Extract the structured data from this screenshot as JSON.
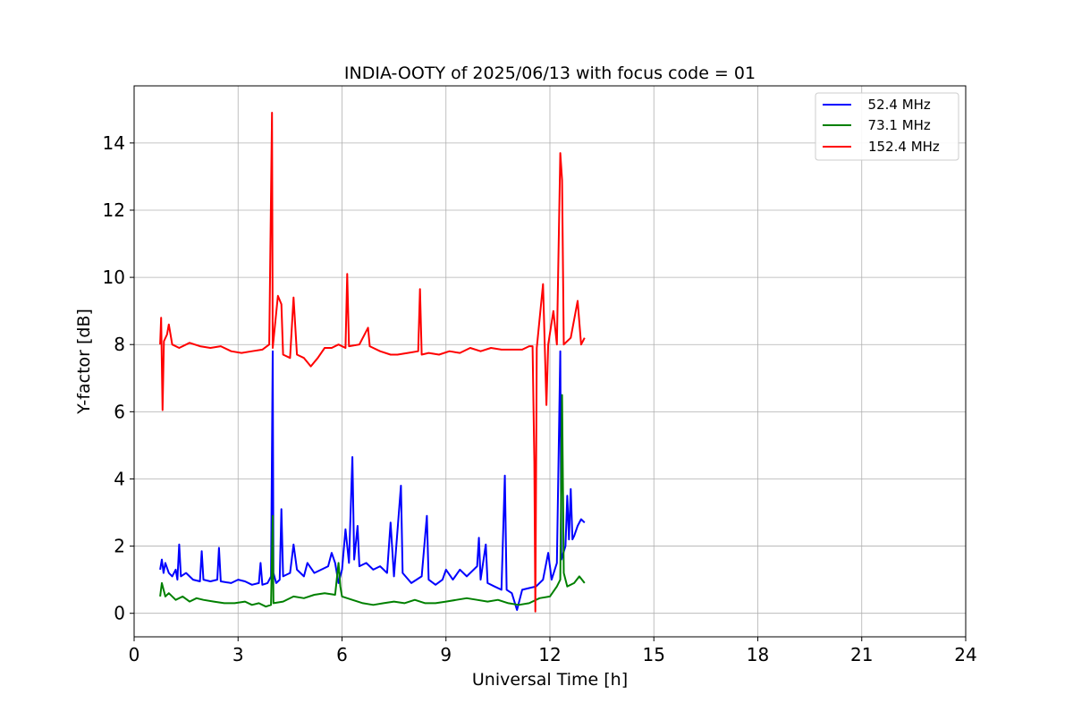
{
  "chart_data": {
    "type": "line",
    "title": "INDIA-OOTY of 2025/06/13 with focus code = 01",
    "xlabel": "Universal Time [h]",
    "ylabel": "Y-factor [dB]",
    "xlim": [
      0,
      24
    ],
    "ylim": [
      -0.7,
      15.7
    ],
    "xticks": [
      0,
      3,
      6,
      9,
      12,
      15,
      18,
      21,
      24
    ],
    "yticks": [
      0,
      2,
      4,
      6,
      8,
      10,
      12,
      14
    ],
    "grid": true,
    "legend_position": "top-right",
    "series": [
      {
        "name": "  52.4 MHz",
        "color": "#0000ff",
        "points": [
          [
            0.75,
            1.3
          ],
          [
            0.8,
            1.6
          ],
          [
            0.85,
            1.2
          ],
          [
            0.9,
            1.5
          ],
          [
            1.0,
            1.2
          ],
          [
            1.1,
            1.1
          ],
          [
            1.2,
            1.3
          ],
          [
            1.25,
            1.0
          ],
          [
            1.3,
            2.05
          ],
          [
            1.35,
            1.1
          ],
          [
            1.5,
            1.2
          ],
          [
            1.7,
            1.0
          ],
          [
            1.9,
            0.95
          ],
          [
            1.95,
            1.85
          ],
          [
            2.0,
            1.0
          ],
          [
            2.2,
            0.95
          ],
          [
            2.4,
            1.0
          ],
          [
            2.45,
            1.95
          ],
          [
            2.5,
            0.95
          ],
          [
            2.8,
            0.9
          ],
          [
            3.0,
            1.0
          ],
          [
            3.2,
            0.95
          ],
          [
            3.4,
            0.85
          ],
          [
            3.6,
            0.9
          ],
          [
            3.65,
            1.5
          ],
          [
            3.7,
            0.85
          ],
          [
            3.85,
            0.9
          ],
          [
            3.95,
            1.1
          ],
          [
            4.0,
            7.8
          ],
          [
            4.02,
            1.2
          ],
          [
            4.1,
            0.9
          ],
          [
            4.2,
            1.0
          ],
          [
            4.25,
            3.1
          ],
          [
            4.3,
            1.1
          ],
          [
            4.5,
            1.2
          ],
          [
            4.6,
            2.05
          ],
          [
            4.7,
            1.3
          ],
          [
            4.9,
            1.1
          ],
          [
            5.0,
            1.5
          ],
          [
            5.2,
            1.2
          ],
          [
            5.4,
            1.3
          ],
          [
            5.6,
            1.4
          ],
          [
            5.7,
            1.8
          ],
          [
            5.8,
            1.5
          ],
          [
            5.9,
            0.9
          ],
          [
            6.0,
            1.3
          ],
          [
            6.1,
            2.5
          ],
          [
            6.2,
            1.5
          ],
          [
            6.3,
            4.65
          ],
          [
            6.35,
            1.6
          ],
          [
            6.45,
            2.6
          ],
          [
            6.5,
            1.4
          ],
          [
            6.7,
            1.5
          ],
          [
            6.9,
            1.3
          ],
          [
            7.1,
            1.4
          ],
          [
            7.3,
            1.2
          ],
          [
            7.4,
            2.7
          ],
          [
            7.5,
            1.1
          ],
          [
            7.7,
            3.8
          ],
          [
            7.75,
            1.2
          ],
          [
            8.0,
            0.9
          ],
          [
            8.3,
            1.1
          ],
          [
            8.45,
            2.9
          ],
          [
            8.5,
            1.0
          ],
          [
            8.7,
            0.85
          ],
          [
            8.9,
            1.0
          ],
          [
            9.0,
            1.3
          ],
          [
            9.2,
            1.0
          ],
          [
            9.4,
            1.3
          ],
          [
            9.6,
            1.1
          ],
          [
            9.9,
            1.4
          ],
          [
            9.95,
            2.25
          ],
          [
            10.0,
            1.0
          ],
          [
            10.15,
            2.05
          ],
          [
            10.2,
            0.9
          ],
          [
            10.4,
            0.8
          ],
          [
            10.6,
            0.7
          ],
          [
            10.7,
            4.1
          ],
          [
            10.75,
            0.7
          ],
          [
            10.9,
            0.6
          ],
          [
            11.05,
            0.1
          ],
          [
            11.2,
            0.7
          ],
          [
            11.4,
            0.75
          ],
          [
            11.6,
            0.8
          ],
          [
            11.8,
            1.0
          ],
          [
            11.95,
            1.8
          ],
          [
            12.05,
            1.0
          ],
          [
            12.2,
            1.5
          ],
          [
            12.3,
            7.8
          ],
          [
            12.33,
            1.6
          ],
          [
            12.45,
            2.0
          ],
          [
            12.5,
            3.5
          ],
          [
            12.55,
            2.2
          ],
          [
            12.6,
            3.7
          ],
          [
            12.65,
            2.2
          ],
          [
            12.7,
            2.3
          ],
          [
            12.8,
            2.6
          ],
          [
            12.9,
            2.8
          ],
          [
            13.0,
            2.7
          ]
        ]
      },
      {
        "name": "  73.1 MHz",
        "color": "#008000",
        "points": [
          [
            0.75,
            0.5
          ],
          [
            0.8,
            0.9
          ],
          [
            0.9,
            0.5
          ],
          [
            1.0,
            0.6
          ],
          [
            1.2,
            0.4
          ],
          [
            1.4,
            0.5
          ],
          [
            1.6,
            0.35
          ],
          [
            1.8,
            0.45
          ],
          [
            2.0,
            0.4
          ],
          [
            2.3,
            0.35
          ],
          [
            2.6,
            0.3
          ],
          [
            2.9,
            0.3
          ],
          [
            3.2,
            0.35
          ],
          [
            3.4,
            0.25
          ],
          [
            3.6,
            0.3
          ],
          [
            3.8,
            0.2
          ],
          [
            3.95,
            0.25
          ],
          [
            4.0,
            2.9
          ],
          [
            4.02,
            0.3
          ],
          [
            4.3,
            0.35
          ],
          [
            4.6,
            0.5
          ],
          [
            4.9,
            0.45
          ],
          [
            5.2,
            0.55
          ],
          [
            5.5,
            0.6
          ],
          [
            5.8,
            0.55
          ],
          [
            5.9,
            1.5
          ],
          [
            5.95,
            0.8
          ],
          [
            6.0,
            0.5
          ],
          [
            6.3,
            0.4
          ],
          [
            6.6,
            0.3
          ],
          [
            6.9,
            0.25
          ],
          [
            7.2,
            0.3
          ],
          [
            7.5,
            0.35
          ],
          [
            7.8,
            0.3
          ],
          [
            8.1,
            0.4
          ],
          [
            8.4,
            0.3
          ],
          [
            8.7,
            0.3
          ],
          [
            9.0,
            0.35
          ],
          [
            9.3,
            0.4
          ],
          [
            9.6,
            0.45
          ],
          [
            9.9,
            0.4
          ],
          [
            10.2,
            0.35
          ],
          [
            10.5,
            0.4
          ],
          [
            10.8,
            0.3
          ],
          [
            11.1,
            0.25
          ],
          [
            11.4,
            0.3
          ],
          [
            11.7,
            0.45
          ],
          [
            12.0,
            0.5
          ],
          [
            12.2,
            0.8
          ],
          [
            12.3,
            1.0
          ],
          [
            12.35,
            6.5
          ],
          [
            12.4,
            1.2
          ],
          [
            12.5,
            0.8
          ],
          [
            12.7,
            0.9
          ],
          [
            12.85,
            1.1
          ],
          [
            13.0,
            0.9
          ]
        ]
      },
      {
        "name": "152.4 MHz",
        "color": "#ff0000",
        "points": [
          [
            0.75,
            8.0
          ],
          [
            0.78,
            8.8
          ],
          [
            0.82,
            6.05
          ],
          [
            0.86,
            8.1
          ],
          [
            0.95,
            8.3
          ],
          [
            1.0,
            8.6
          ],
          [
            1.1,
            8.0
          ],
          [
            1.3,
            7.9
          ],
          [
            1.6,
            8.05
          ],
          [
            1.9,
            7.95
          ],
          [
            2.2,
            7.9
          ],
          [
            2.5,
            7.95
          ],
          [
            2.8,
            7.8
          ],
          [
            3.1,
            7.75
          ],
          [
            3.4,
            7.8
          ],
          [
            3.7,
            7.85
          ],
          [
            3.9,
            8.0
          ],
          [
            3.98,
            14.9
          ],
          [
            4.0,
            7.9
          ],
          [
            4.15,
            9.45
          ],
          [
            4.25,
            9.2
          ],
          [
            4.3,
            7.7
          ],
          [
            4.5,
            7.6
          ],
          [
            4.6,
            9.4
          ],
          [
            4.7,
            7.7
          ],
          [
            4.9,
            7.6
          ],
          [
            5.1,
            7.35
          ],
          [
            5.3,
            7.6
          ],
          [
            5.5,
            7.9
          ],
          [
            5.7,
            7.9
          ],
          [
            5.9,
            8.0
          ],
          [
            6.1,
            7.9
          ],
          [
            6.15,
            10.1
          ],
          [
            6.2,
            7.95
          ],
          [
            6.5,
            8.0
          ],
          [
            6.75,
            8.5
          ],
          [
            6.8,
            7.95
          ],
          [
            7.1,
            7.8
          ],
          [
            7.4,
            7.7
          ],
          [
            7.6,
            7.7
          ],
          [
            7.9,
            7.75
          ],
          [
            8.2,
            7.8
          ],
          [
            8.25,
            9.65
          ],
          [
            8.3,
            7.7
          ],
          [
            8.5,
            7.75
          ],
          [
            8.8,
            7.7
          ],
          [
            9.1,
            7.8
          ],
          [
            9.4,
            7.75
          ],
          [
            9.7,
            7.9
          ],
          [
            10.0,
            7.8
          ],
          [
            10.3,
            7.9
          ],
          [
            10.6,
            7.85
          ],
          [
            10.9,
            7.85
          ],
          [
            11.2,
            7.85
          ],
          [
            11.4,
            7.95
          ],
          [
            11.5,
            7.95
          ],
          [
            11.55,
            4.5
          ],
          [
            11.58,
            0.05
          ],
          [
            11.62,
            7.9
          ],
          [
            11.8,
            9.8
          ],
          [
            11.85,
            8.0
          ],
          [
            11.9,
            6.2
          ],
          [
            11.95,
            8.0
          ],
          [
            12.1,
            9.0
          ],
          [
            12.2,
            8.0
          ],
          [
            12.3,
            13.7
          ],
          [
            12.35,
            12.9
          ],
          [
            12.4,
            8.0
          ],
          [
            12.6,
            8.2
          ],
          [
            12.8,
            9.3
          ],
          [
            12.9,
            8.0
          ],
          [
            13.0,
            8.2
          ]
        ]
      }
    ]
  }
}
